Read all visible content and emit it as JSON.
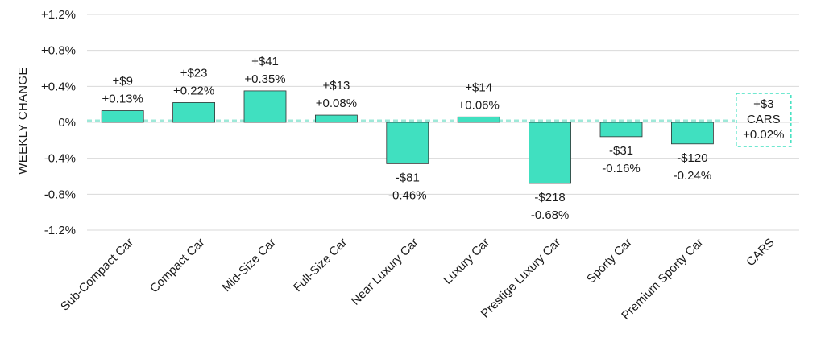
{
  "chart_data": {
    "type": "bar",
    "ylabel": "WEEKLY CHANGE",
    "ylim": [
      -1.2,
      1.2
    ],
    "yticks": [
      1.2,
      0.8,
      0.4,
      0,
      -0.4,
      -0.8,
      -1.2
    ],
    "ytick_labels": [
      "+1.2%",
      "+0.8%",
      "+0.4%",
      "0%",
      "-0.4%",
      "-0.8%",
      "-1.2%"
    ],
    "categories": [
      "Sub-Compact Car",
      "Compact Car",
      "Mid-Size Car",
      "Full-Size Car",
      "Near Luxury Car",
      "Luxury Car",
      "Prestige Luxury Car",
      "Sporty Car",
      "Premium Sporty Car",
      "CARS"
    ],
    "values": [
      0.13,
      0.22,
      0.35,
      0.08,
      -0.46,
      0.06,
      -0.68,
      -0.16,
      -0.24,
      0.02
    ],
    "dollar_labels": [
      "+$9",
      "+$23",
      "+$41",
      "+$13",
      "-$81",
      "+$14",
      "-$218",
      "-$31",
      "-$120",
      "+$3"
    ],
    "percent_labels": [
      "+0.13%",
      "+0.22%",
      "+0.35%",
      "+0.08%",
      "-0.46%",
      "+0.06%",
      "-0.68%",
      "-0.16%",
      "-0.24%",
      "+0.02%"
    ],
    "summary_box": {
      "category": "CARS",
      "dollar": "+$3",
      "name": "CARS",
      "percent": "+0.02%"
    },
    "bar_color": "#40E0C0",
    "bar_edge_color": "#333333",
    "reference_line_color": "#9EE8D8",
    "grid": true
  }
}
